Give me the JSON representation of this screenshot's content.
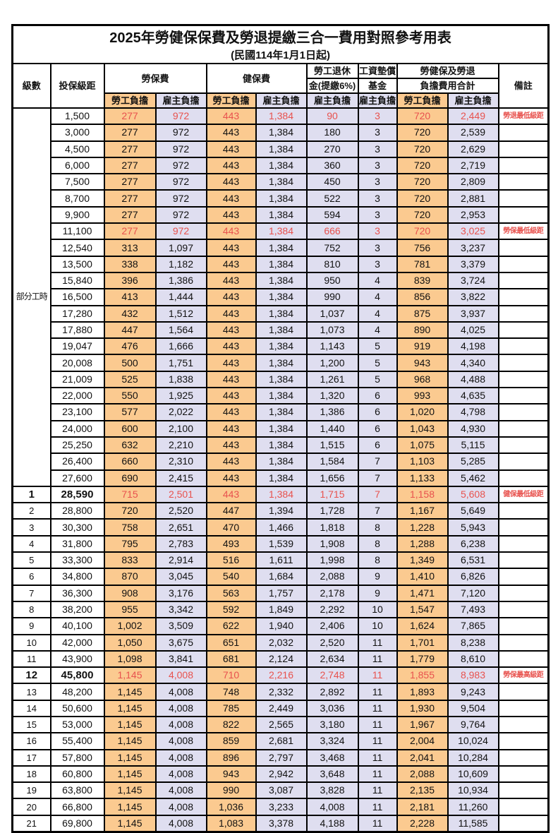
{
  "table": {
    "title": "2025年勞健保保費及勞退提繳三合一費用對照參考用表",
    "subtitle": "(民國114年1月1日起)",
    "colors": {
      "employee_fill": "#FBCA90",
      "employer_fill": "#DFDEF0",
      "highlight_text": "#E8524E",
      "border": "#000000"
    },
    "header": {
      "grade": "級數",
      "salary": "投保級距",
      "labor_fee": "勞保費",
      "health_fee": "健保費",
      "pension_line1": "勞工退休",
      "pension_line2": "金(提繳6%)",
      "wage_fund_line1": "工資墊償",
      "wage_fund_line2": "基金",
      "total_line1": "勞健保及勞退",
      "total_line2": "負擔費用合計",
      "employee_share": "勞工負擔",
      "employer_share": "雇主負擔",
      "remark": "備註"
    },
    "part_time_label": "部分工時",
    "part_time_rowspan": 23,
    "rows": [
      {
        "grade": "",
        "salary": "1,500",
        "values": [
          "277",
          "972",
          "443",
          "1,384",
          "90",
          "3",
          "720",
          "2,449"
        ],
        "remark": "勞退最低級距",
        "red": true,
        "emph": false
      },
      {
        "grade": "",
        "salary": "3,000",
        "values": [
          "277",
          "972",
          "443",
          "1,384",
          "180",
          "3",
          "720",
          "2,539"
        ],
        "remark": "",
        "red": false,
        "emph": false
      },
      {
        "grade": "",
        "salary": "4,500",
        "values": [
          "277",
          "972",
          "443",
          "1,384",
          "270",
          "3",
          "720",
          "2,629"
        ],
        "remark": "",
        "red": false,
        "emph": false
      },
      {
        "grade": "",
        "salary": "6,000",
        "values": [
          "277",
          "972",
          "443",
          "1,384",
          "360",
          "3",
          "720",
          "2,719"
        ],
        "remark": "",
        "red": false,
        "emph": false
      },
      {
        "grade": "",
        "salary": "7,500",
        "values": [
          "277",
          "972",
          "443",
          "1,384",
          "450",
          "3",
          "720",
          "2,809"
        ],
        "remark": "",
        "red": false,
        "emph": false
      },
      {
        "grade": "",
        "salary": "8,700",
        "values": [
          "277",
          "972",
          "443",
          "1,384",
          "522",
          "3",
          "720",
          "2,881"
        ],
        "remark": "",
        "red": false,
        "emph": false
      },
      {
        "grade": "",
        "salary": "9,900",
        "values": [
          "277",
          "972",
          "443",
          "1,384",
          "594",
          "3",
          "720",
          "2,953"
        ],
        "remark": "",
        "red": false,
        "emph": false
      },
      {
        "grade": "",
        "salary": "11,100",
        "values": [
          "277",
          "972",
          "443",
          "1,384",
          "666",
          "3",
          "720",
          "3,025"
        ],
        "remark": "勞保最低級距",
        "red": true,
        "emph": false
      },
      {
        "grade": "",
        "salary": "12,540",
        "values": [
          "313",
          "1,097",
          "443",
          "1,384",
          "752",
          "3",
          "756",
          "3,237"
        ],
        "remark": "",
        "red": false,
        "emph": false
      },
      {
        "grade": "",
        "salary": "13,500",
        "values": [
          "338",
          "1,182",
          "443",
          "1,384",
          "810",
          "3",
          "781",
          "3,379"
        ],
        "remark": "",
        "red": false,
        "emph": false
      },
      {
        "grade": "",
        "salary": "15,840",
        "values": [
          "396",
          "1,386",
          "443",
          "1,384",
          "950",
          "4",
          "839",
          "3,724"
        ],
        "remark": "",
        "red": false,
        "emph": false
      },
      {
        "grade": "",
        "salary": "16,500",
        "values": [
          "413",
          "1,444",
          "443",
          "1,384",
          "990",
          "4",
          "856",
          "3,822"
        ],
        "remark": "",
        "red": false,
        "emph": false
      },
      {
        "grade": "",
        "salary": "17,280",
        "values": [
          "432",
          "1,512",
          "443",
          "1,384",
          "1,037",
          "4",
          "875",
          "3,937"
        ],
        "remark": "",
        "red": false,
        "emph": false
      },
      {
        "grade": "",
        "salary": "17,880",
        "values": [
          "447",
          "1,564",
          "443",
          "1,384",
          "1,073",
          "4",
          "890",
          "4,025"
        ],
        "remark": "",
        "red": false,
        "emph": false
      },
      {
        "grade": "",
        "salary": "19,047",
        "values": [
          "476",
          "1,666",
          "443",
          "1,384",
          "1,143",
          "5",
          "919",
          "4,198"
        ],
        "remark": "",
        "red": false,
        "emph": false
      },
      {
        "grade": "",
        "salary": "20,008",
        "values": [
          "500",
          "1,751",
          "443",
          "1,384",
          "1,200",
          "5",
          "943",
          "4,340"
        ],
        "remark": "",
        "red": false,
        "emph": false
      },
      {
        "grade": "",
        "salary": "21,009",
        "values": [
          "525",
          "1,838",
          "443",
          "1,384",
          "1,261",
          "5",
          "968",
          "4,488"
        ],
        "remark": "",
        "red": false,
        "emph": false
      },
      {
        "grade": "",
        "salary": "22,000",
        "values": [
          "550",
          "1,925",
          "443",
          "1,384",
          "1,320",
          "6",
          "993",
          "4,635"
        ],
        "remark": "",
        "red": false,
        "emph": false
      },
      {
        "grade": "",
        "salary": "23,100",
        "values": [
          "577",
          "2,022",
          "443",
          "1,384",
          "1,386",
          "6",
          "1,020",
          "4,798"
        ],
        "remark": "",
        "red": false,
        "emph": false
      },
      {
        "grade": "",
        "salary": "24,000",
        "values": [
          "600",
          "2,100",
          "443",
          "1,384",
          "1,440",
          "6",
          "1,043",
          "4,930"
        ],
        "remark": "",
        "red": false,
        "emph": false
      },
      {
        "grade": "",
        "salary": "25,250",
        "values": [
          "632",
          "2,210",
          "443",
          "1,384",
          "1,515",
          "6",
          "1,075",
          "5,115"
        ],
        "remark": "",
        "red": false,
        "emph": false
      },
      {
        "grade": "",
        "salary": "26,400",
        "values": [
          "660",
          "2,310",
          "443",
          "1,384",
          "1,584",
          "7",
          "1,103",
          "5,285"
        ],
        "remark": "",
        "red": false,
        "emph": false
      },
      {
        "grade": "",
        "salary": "27,600",
        "values": [
          "690",
          "2,415",
          "443",
          "1,384",
          "1,656",
          "7",
          "1,133",
          "5,462"
        ],
        "remark": "",
        "red": false,
        "emph": false
      },
      {
        "grade": "1",
        "salary": "28,590",
        "values": [
          "715",
          "2,501",
          "443",
          "1,384",
          "1,715",
          "7",
          "1,158",
          "5,608"
        ],
        "remark": "健保最低級距",
        "red": true,
        "emph": true
      },
      {
        "grade": "2",
        "salary": "28,800",
        "values": [
          "720",
          "2,520",
          "447",
          "1,394",
          "1,728",
          "7",
          "1,167",
          "5,649"
        ],
        "remark": "",
        "red": false,
        "emph": false
      },
      {
        "grade": "3",
        "salary": "30,300",
        "values": [
          "758",
          "2,651",
          "470",
          "1,466",
          "1,818",
          "8",
          "1,228",
          "5,943"
        ],
        "remark": "",
        "red": false,
        "emph": false
      },
      {
        "grade": "4",
        "salary": "31,800",
        "values": [
          "795",
          "2,783",
          "493",
          "1,539",
          "1,908",
          "8",
          "1,288",
          "6,238"
        ],
        "remark": "",
        "red": false,
        "emph": false
      },
      {
        "grade": "5",
        "salary": "33,300",
        "values": [
          "833",
          "2,914",
          "516",
          "1,611",
          "1,998",
          "8",
          "1,349",
          "6,531"
        ],
        "remark": "",
        "red": false,
        "emph": false
      },
      {
        "grade": "6",
        "salary": "34,800",
        "values": [
          "870",
          "3,045",
          "540",
          "1,684",
          "2,088",
          "9",
          "1,410",
          "6,826"
        ],
        "remark": "",
        "red": false,
        "emph": false
      },
      {
        "grade": "7",
        "salary": "36,300",
        "values": [
          "908",
          "3,176",
          "563",
          "1,757",
          "2,178",
          "9",
          "1,471",
          "7,120"
        ],
        "remark": "",
        "red": false,
        "emph": false
      },
      {
        "grade": "8",
        "salary": "38,200",
        "values": [
          "955",
          "3,342",
          "592",
          "1,849",
          "2,292",
          "10",
          "1,547",
          "7,493"
        ],
        "remark": "",
        "red": false,
        "emph": false
      },
      {
        "grade": "9",
        "salary": "40,100",
        "values": [
          "1,002",
          "3,509",
          "622",
          "1,940",
          "2,406",
          "10",
          "1,624",
          "7,865"
        ],
        "remark": "",
        "red": false,
        "emph": false
      },
      {
        "grade": "10",
        "salary": "42,000",
        "values": [
          "1,050",
          "3,675",
          "651",
          "2,032",
          "2,520",
          "11",
          "1,701",
          "8,238"
        ],
        "remark": "",
        "red": false,
        "emph": false
      },
      {
        "grade": "11",
        "salary": "43,900",
        "values": [
          "1,098",
          "3,841",
          "681",
          "2,124",
          "2,634",
          "11",
          "1,779",
          "8,610"
        ],
        "remark": "",
        "red": false,
        "emph": false
      },
      {
        "grade": "12",
        "salary": "45,800",
        "values": [
          "1,145",
          "4,008",
          "710",
          "2,216",
          "2,748",
          "11",
          "1,855",
          "8,983"
        ],
        "remark": "勞保最高級距",
        "red": true,
        "emph": true
      },
      {
        "grade": "13",
        "salary": "48,200",
        "values": [
          "1,145",
          "4,008",
          "748",
          "2,332",
          "2,892",
          "11",
          "1,893",
          "9,243"
        ],
        "remark": "",
        "red": false,
        "emph": false
      },
      {
        "grade": "14",
        "salary": "50,600",
        "values": [
          "1,145",
          "4,008",
          "785",
          "2,449",
          "3,036",
          "11",
          "1,930",
          "9,504"
        ],
        "remark": "",
        "red": false,
        "emph": false
      },
      {
        "grade": "15",
        "salary": "53,000",
        "values": [
          "1,145",
          "4,008",
          "822",
          "2,565",
          "3,180",
          "11",
          "1,967",
          "9,764"
        ],
        "remark": "",
        "red": false,
        "emph": false
      },
      {
        "grade": "16",
        "salary": "55,400",
        "values": [
          "1,145",
          "4,008",
          "859",
          "2,681",
          "3,324",
          "11",
          "2,004",
          "10,024"
        ],
        "remark": "",
        "red": false,
        "emph": false
      },
      {
        "grade": "17",
        "salary": "57,800",
        "values": [
          "1,145",
          "4,008",
          "896",
          "2,797",
          "3,468",
          "11",
          "2,041",
          "10,284"
        ],
        "remark": "",
        "red": false,
        "emph": false
      },
      {
        "grade": "18",
        "salary": "60,800",
        "values": [
          "1,145",
          "4,008",
          "943",
          "2,942",
          "3,648",
          "11",
          "2,088",
          "10,609"
        ],
        "remark": "",
        "red": false,
        "emph": false
      },
      {
        "grade": "19",
        "salary": "63,800",
        "values": [
          "1,145",
          "4,008",
          "990",
          "3,087",
          "3,828",
          "11",
          "2,135",
          "10,934"
        ],
        "remark": "",
        "red": false,
        "emph": false
      },
      {
        "grade": "20",
        "salary": "66,800",
        "values": [
          "1,145",
          "4,008",
          "1,036",
          "3,233",
          "4,008",
          "11",
          "2,181",
          "11,260"
        ],
        "remark": "",
        "red": false,
        "emph": false
      },
      {
        "grade": "21",
        "salary": "69,800",
        "values": [
          "1,145",
          "4,008",
          "1,083",
          "3,378",
          "4,188",
          "11",
          "2,228",
          "11,585"
        ],
        "remark": "",
        "red": false,
        "emph": false
      }
    ]
  }
}
